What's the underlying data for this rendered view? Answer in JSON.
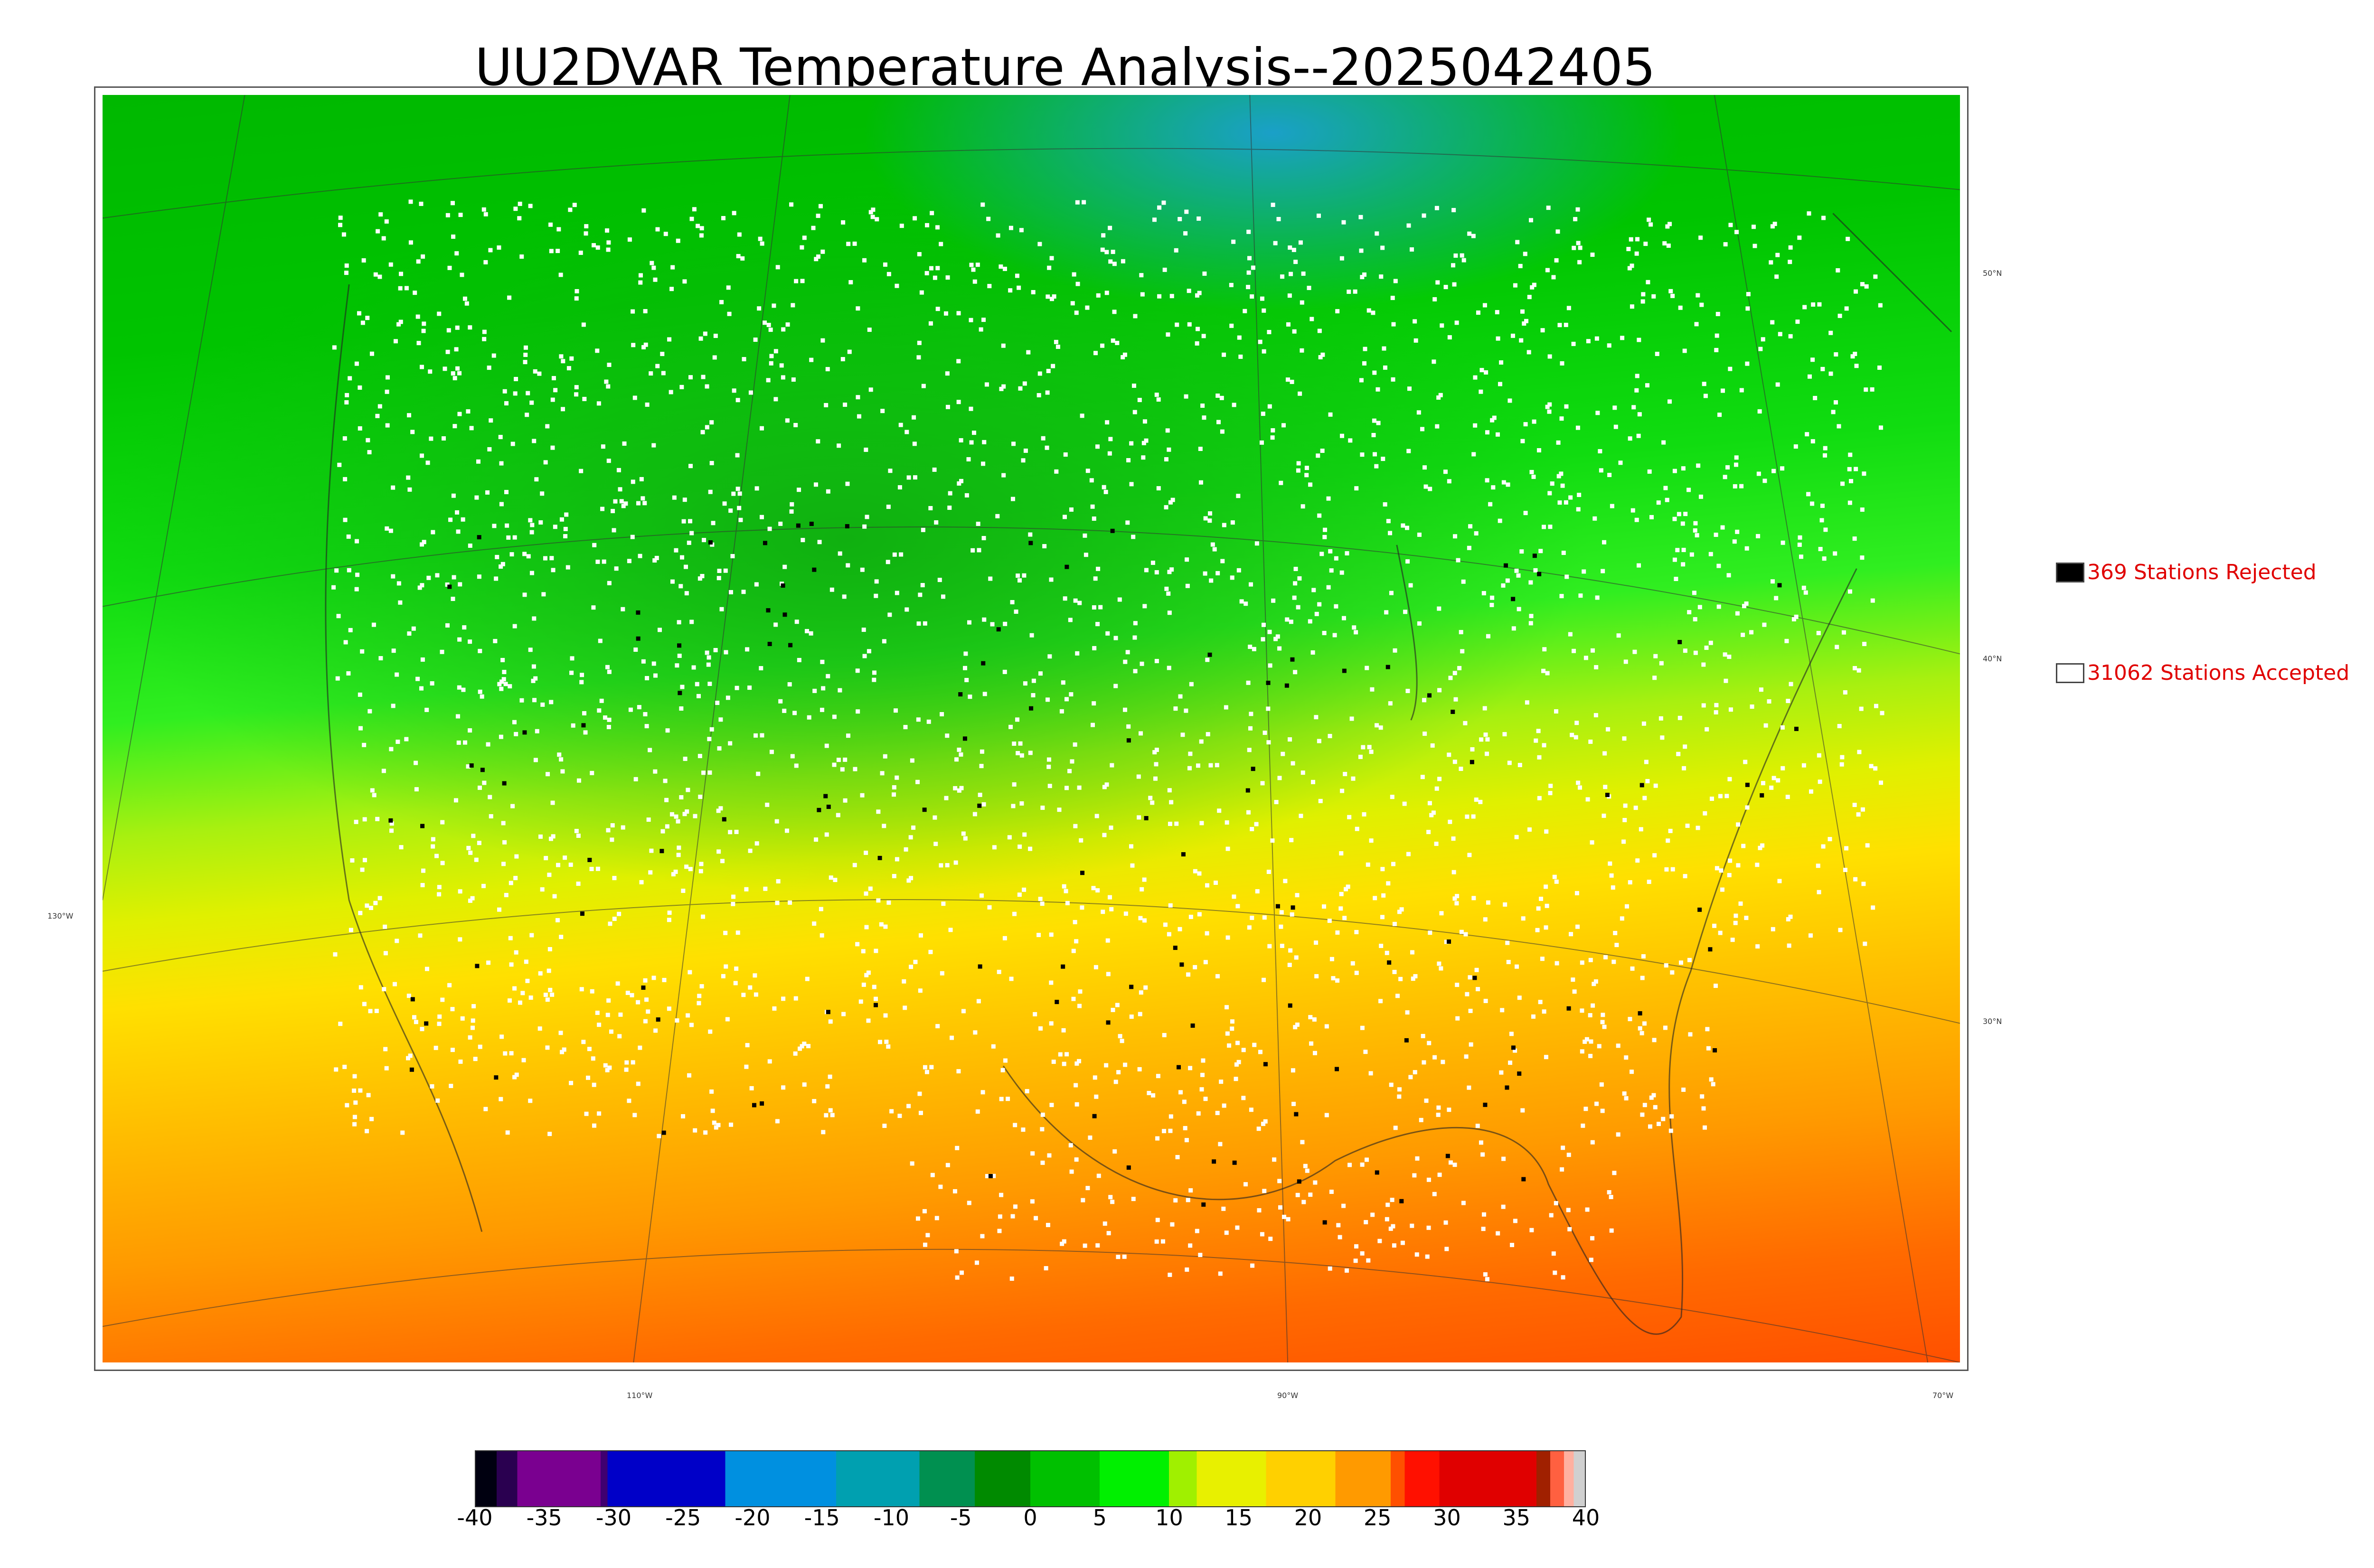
{
  "title": "UU2DVAR Temperature Analysis--2025042405",
  "legend": {
    "rejected": {
      "count_label": "369 Stations Rejected",
      "color": "#000000"
    },
    "accepted": {
      "count_label": "31062 Stations Accepted",
      "color": "#ffffff"
    }
  },
  "graticule": {
    "longitudes": [
      "130°W",
      "110°W",
      "90°W",
      "70°W"
    ],
    "latitudes": [
      "50°N",
      "40°N",
      "30°N"
    ]
  },
  "colorbar": {
    "ticks": [
      "-40",
      "-35",
      "-30",
      "-25",
      "-20",
      "-15",
      "-10",
      "-5",
      "0",
      "5",
      "10",
      "15",
      "20",
      "25",
      "30",
      "35",
      "40"
    ],
    "min": -40,
    "max": 40,
    "segments": [
      {
        "from": -40,
        "to": -38.5,
        "color": "#000010"
      },
      {
        "from": -38.5,
        "to": -37,
        "color": "#2a0050"
      },
      {
        "from": -37,
        "to": -31,
        "color": "#7a0090"
      },
      {
        "from": -31,
        "to": -30.5,
        "color": "#400070"
      },
      {
        "from": -30.5,
        "to": -22,
        "color": "#0000c8"
      },
      {
        "from": -22,
        "to": -14,
        "color": "#0090e0"
      },
      {
        "from": -14,
        "to": -8,
        "color": "#00a0b0"
      },
      {
        "from": -8,
        "to": -4,
        "color": "#009050"
      },
      {
        "from": -4,
        "to": 0,
        "color": "#008a00"
      },
      {
        "from": 0,
        "to": 5,
        "color": "#00c000"
      },
      {
        "from": 5,
        "to": 10,
        "color": "#00f000"
      },
      {
        "from": 10,
        "to": 12,
        "color": "#a0f000"
      },
      {
        "from": 12,
        "to": 17,
        "color": "#e8f000"
      },
      {
        "from": 17,
        "to": 22,
        "color": "#ffd000"
      },
      {
        "from": 22,
        "to": 26,
        "color": "#ff9a00"
      },
      {
        "from": 26,
        "to": 27,
        "color": "#ff5000"
      },
      {
        "from": 27,
        "to": 29.5,
        "color": "#ff1000"
      },
      {
        "from": 29.5,
        "to": 36.5,
        "color": "#e00000"
      },
      {
        "from": 36.5,
        "to": 37.5,
        "color": "#a02000"
      },
      {
        "from": 37.5,
        "to": 38.5,
        "color": "#ff6040"
      },
      {
        "from": 38.5,
        "to": 39.2,
        "color": "#ffb0a0"
      },
      {
        "from": 39.2,
        "to": 40,
        "color": "#d0d0d0"
      }
    ]
  }
}
